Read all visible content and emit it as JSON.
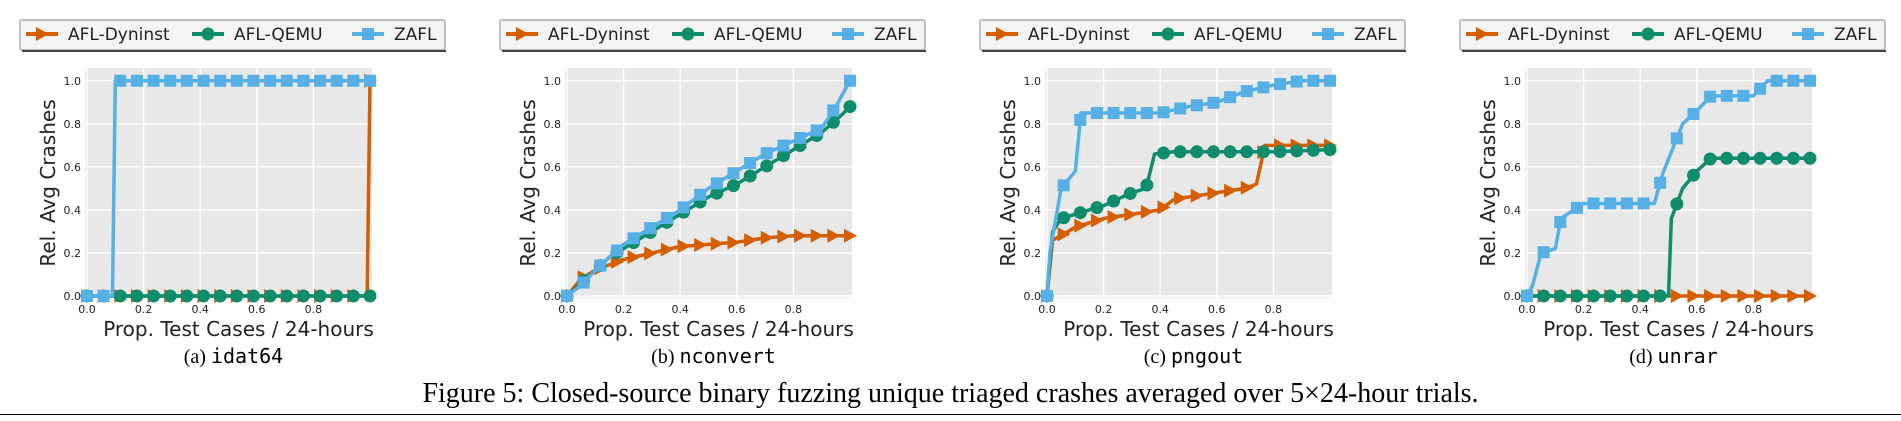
{
  "figure_caption": "Figure 5: Closed-source binary fuzzing unique triaged crashes averaged over 5×24-hour trials.",
  "colors": {
    "AFL-Dyninst": "#d45e00",
    "AFL-QEMU": "#0e8c6b",
    "ZAFL": "#56b0e6"
  },
  "chart_data": [
    {
      "type": "line",
      "sub_label": "(a)",
      "target": "idat64",
      "legend": [
        "AFL-Dyninst",
        "AFL-QEMU",
        "ZAFL"
      ],
      "xlabel": "Prop. Test Cases / 24-hours",
      "ylabel": "Rel. Avg Crashes",
      "xlim": [
        0,
        1.0
      ],
      "ylim": [
        0,
        1.05
      ],
      "xticks": [
        "0.0",
        "0.2",
        "0.4",
        "0.6",
        "0.8"
      ],
      "yticks": [
        "0.0",
        "0.2",
        "0.4",
        "0.6",
        "0.8",
        "1.0"
      ],
      "series": [
        {
          "name": "AFL-Dyninst",
          "x": [
            0.0,
            0.99,
            1.0
          ],
          "y": [
            0.0,
            0.0,
            1.0
          ]
        },
        {
          "name": "AFL-QEMU",
          "x": [
            0.0,
            1.0
          ],
          "y": [
            0.0,
            0.0
          ]
        },
        {
          "name": "ZAFL",
          "x": [
            0.0,
            0.09,
            0.1,
            1.0
          ],
          "y": [
            0.0,
            0.0,
            1.0,
            1.0
          ]
        }
      ]
    },
    {
      "type": "line",
      "sub_label": "(b)",
      "target": "nconvert",
      "legend": [
        "AFL-Dyninst",
        "AFL-QEMU",
        "ZAFL"
      ],
      "xlabel": "Prop. Test Cases / 24-hours",
      "ylabel": "Rel. Avg Crashes",
      "xlim": [
        0,
        1.0
      ],
      "ylim": [
        0,
        1.05
      ],
      "xticks": [
        "0.0",
        "0.2",
        "0.4",
        "0.6",
        "0.8"
      ],
      "yticks": [
        "0.0",
        "0.2",
        "0.4",
        "0.6",
        "0.8",
        "1.0"
      ],
      "series": [
        {
          "name": "AFL-Dyninst",
          "x": [
            0.0,
            0.05,
            0.1,
            0.2,
            0.3,
            0.4,
            0.5,
            0.6,
            0.7,
            0.8,
            0.9,
            1.0
          ],
          "y": [
            0.0,
            0.08,
            0.12,
            0.17,
            0.2,
            0.23,
            0.24,
            0.25,
            0.27,
            0.28,
            0.28,
            0.28
          ]
        },
        {
          "name": "AFL-QEMU",
          "x": [
            0.0,
            0.05,
            0.1,
            0.15,
            0.2,
            0.3,
            0.4,
            0.5,
            0.6,
            0.7,
            0.8,
            0.9,
            0.97,
            1.0
          ],
          "y": [
            0.0,
            0.06,
            0.12,
            0.18,
            0.22,
            0.3,
            0.38,
            0.46,
            0.52,
            0.6,
            0.68,
            0.76,
            0.84,
            0.88
          ]
        },
        {
          "name": "ZAFL",
          "x": [
            0.0,
            0.05,
            0.1,
            0.15,
            0.2,
            0.3,
            0.4,
            0.5,
            0.6,
            0.7,
            0.8,
            0.9,
            0.95,
            1.0
          ],
          "y": [
            0.0,
            0.05,
            0.12,
            0.18,
            0.24,
            0.32,
            0.4,
            0.5,
            0.58,
            0.66,
            0.72,
            0.78,
            0.88,
            1.0
          ]
        }
      ]
    },
    {
      "type": "line",
      "sub_label": "(c)",
      "target": "pngout",
      "legend": [
        "AFL-Dyninst",
        "AFL-QEMU",
        "ZAFL"
      ],
      "xlabel": "Prop. Test Cases / 24-hours",
      "ylabel": "Rel. Avg Crashes",
      "xlim": [
        0,
        1.0
      ],
      "ylim": [
        0,
        1.05
      ],
      "xticks": [
        "0.0",
        "0.2",
        "0.4",
        "0.6",
        "0.8"
      ],
      "yticks": [
        "0.0",
        "0.2",
        "0.4",
        "0.6",
        "0.8",
        "1.0"
      ],
      "series": [
        {
          "name": "AFL-Dyninst",
          "x": [
            0.0,
            0.02,
            0.05,
            0.1,
            0.2,
            0.3,
            0.4,
            0.45,
            0.5,
            0.6,
            0.7,
            0.74,
            0.77,
            0.8,
            0.9,
            1.0
          ],
          "y": [
            0.0,
            0.26,
            0.28,
            0.32,
            0.36,
            0.38,
            0.4,
            0.45,
            0.46,
            0.48,
            0.5,
            0.52,
            0.7,
            0.7,
            0.7,
            0.7
          ]
        },
        {
          "name": "AFL-QEMU",
          "x": [
            0.0,
            0.02,
            0.05,
            0.1,
            0.2,
            0.3,
            0.35,
            0.38,
            0.45,
            0.6,
            0.8,
            1.0
          ],
          "y": [
            0.0,
            0.3,
            0.36,
            0.38,
            0.42,
            0.48,
            0.5,
            0.66,
            0.67,
            0.67,
            0.67,
            0.68
          ]
        },
        {
          "name": "ZAFL",
          "x": [
            0.0,
            0.01,
            0.05,
            0.1,
            0.12,
            0.3,
            0.4,
            0.5,
            0.6,
            0.7,
            0.8,
            0.9,
            1.0
          ],
          "y": [
            0.0,
            0.2,
            0.5,
            0.58,
            0.85,
            0.85,
            0.85,
            0.88,
            0.9,
            0.95,
            0.98,
            1.0,
            1.0
          ]
        }
      ]
    },
    {
      "type": "line",
      "sub_label": "(d)",
      "target": "unrar",
      "legend": [
        "AFL-Dyninst",
        "AFL-QEMU",
        "ZAFL"
      ],
      "xlabel": "Prop. Test Cases / 24-hours",
      "ylabel": "Rel. Avg Crashes",
      "xlim": [
        0,
        1.0
      ],
      "ylim": [
        0,
        1.05
      ],
      "xticks": [
        "0.0",
        "0.2",
        "0.4",
        "0.6",
        "0.8"
      ],
      "yticks": [
        "0.0",
        "0.2",
        "0.4",
        "0.6",
        "0.8",
        "1.0"
      ],
      "series": [
        {
          "name": "AFL-Dyninst",
          "x": [
            0.0,
            1.0
          ],
          "y": [
            0.0,
            0.0
          ]
        },
        {
          "name": "AFL-QEMU",
          "x": [
            0.0,
            0.5,
            0.51,
            0.55,
            0.6,
            0.65,
            0.8,
            1.0
          ],
          "y": [
            0.0,
            0.0,
            0.36,
            0.5,
            0.58,
            0.64,
            0.64,
            0.64
          ]
        },
        {
          "name": "ZAFL",
          "x": [
            0.0,
            0.02,
            0.05,
            0.1,
            0.12,
            0.2,
            0.45,
            0.48,
            0.55,
            0.6,
            0.65,
            0.8,
            0.85,
            1.0
          ],
          "y": [
            0.0,
            0.05,
            0.2,
            0.22,
            0.36,
            0.43,
            0.43,
            0.57,
            0.8,
            0.86,
            0.93,
            0.93,
            1.0,
            1.0
          ]
        }
      ]
    }
  ]
}
